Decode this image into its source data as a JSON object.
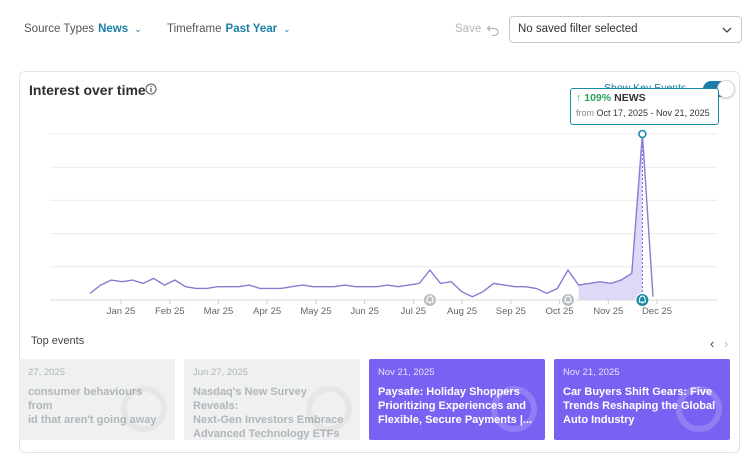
{
  "filters": {
    "source_types": {
      "label": "Source Types",
      "value": "News"
    },
    "timeframe": {
      "label": "Timeframe",
      "value": "Past Year"
    },
    "save_label": "Save",
    "saved_filter": {
      "value": "No saved filter selected"
    }
  },
  "card": {
    "title": "Interest over time",
    "key_events_label": "Show Key Events",
    "key_events_enabled": true,
    "tooltip": {
      "percent": "109%",
      "series": "NEWS",
      "from_label": "from",
      "range": "Oct 17, 2025 - Nov 21, 2025"
    }
  },
  "chart_data": {
    "type": "line",
    "x_ticks": [
      "Jan 25",
      "Feb 25",
      "Mar 25",
      "Apr 25",
      "May 25",
      "Jun 25",
      "Jul 25",
      "Aug 25",
      "Sep 25",
      "Oct 25",
      "Nov 25",
      "Dec 25"
    ],
    "grid": true,
    "series": [
      {
        "color": "#8a7bd0",
        "values": [
          4,
          9,
          12,
          11,
          12,
          10,
          13,
          9,
          12,
          8,
          7,
          7,
          8,
          8,
          8,
          9,
          7,
          7,
          7,
          8,
          9,
          8,
          8,
          8,
          9,
          8,
          8,
          8,
          9,
          8,
          9,
          10,
          18,
          10,
          11,
          5,
          2,
          5,
          10,
          9,
          8,
          8,
          7,
          4,
          7,
          18,
          9,
          10,
          11,
          10,
          12,
          16,
          100,
          2
        ]
      }
    ],
    "highlight_range": {
      "start_index": 46,
      "end_index": 52
    },
    "event_markers": [
      {
        "type": "bell",
        "index": 32,
        "active": false
      },
      {
        "type": "bell",
        "index": 45,
        "active": false
      },
      {
        "type": "bell",
        "index": 52,
        "active": true
      }
    ]
  },
  "top_events": {
    "label": "Top events",
    "prev_icon": "chevron-left-icon",
    "next_icon": "chevron-right-icon",
    "items": [
      {
        "date": "27, 2025",
        "text": "consumer behaviours from\nid that aren't going away",
        "style": "faded"
      },
      {
        "date": "Jun 27, 2025",
        "text": "Nasdaq's New Survey Reveals:\nNext-Gen Investors Embrace\nAdvanced Technology ETFs",
        "style": "faded"
      },
      {
        "date": "Nov 21, 2025",
        "text": "Paysafe: Holiday Shoppers\nPrioritizing Experiences and\nFlexible, Secure Payments |...",
        "style": "purple"
      },
      {
        "date": "Nov 21, 2025",
        "text": "Car Buyers Shift Gears: Five\nTrends Reshaping the Global\nAuto Industry",
        "style": "purple"
      }
    ]
  },
  "colors": {
    "accent": "#1a7fa8",
    "event_card": "#7b61f2",
    "line": "#8a7bd0",
    "highlight_fill": "#d9d2f7"
  }
}
